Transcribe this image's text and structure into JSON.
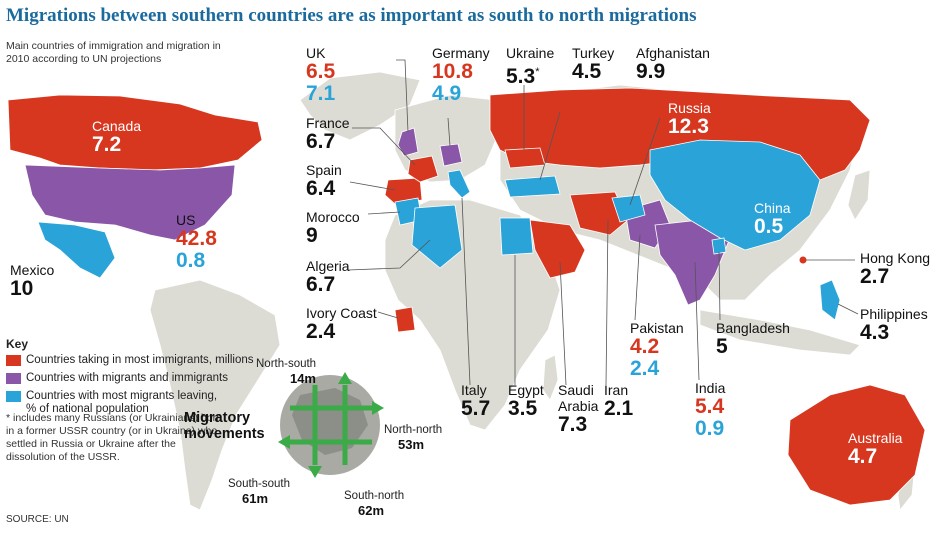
{
  "title": "Migrations between southern countries are as important as south to north migrations",
  "subtitle": "Main countries of immigration and migration in 2010 according to UN projections",
  "colors": {
    "immigration": "#d7371f",
    "both": "#8a57a8",
    "emigration": "#2aa3d9",
    "land": "#dcdcd4",
    "ocean": "#ffffff"
  },
  "countries": {
    "canada": {
      "name": "Canada",
      "immigrants": "7.2"
    },
    "us": {
      "name": "US",
      "immigrants": "42.8",
      "emigrants": "0.8"
    },
    "mexico": {
      "name": "Mexico",
      "emigrants": "10"
    },
    "uk": {
      "name": "UK",
      "immigrants": "6.5",
      "emigrants": "7.1"
    },
    "france": {
      "name": "France",
      "immigrants": "6.7"
    },
    "spain": {
      "name": "Spain",
      "immigrants": "6.4"
    },
    "morocco": {
      "name": "Morocco",
      "emigrants": "9"
    },
    "algeria": {
      "name": "Algeria",
      "emigrants": "6.7"
    },
    "ivory_coast": {
      "name": "Ivory Coast",
      "immigrants": "2.4"
    },
    "germany": {
      "name": "Germany",
      "immigrants": "10.8",
      "emigrants": "4.9"
    },
    "ukraine": {
      "name": "Ukraine",
      "immigrants": "5.3",
      "marker": "*"
    },
    "turkey": {
      "name": "Turkey",
      "emigrants": "4.5"
    },
    "afghanistan": {
      "name": "Afghanistan",
      "emigrants": "9.9"
    },
    "russia": {
      "name": "Russia",
      "immigrants": "12.3"
    },
    "china": {
      "name": "China",
      "emigrants": "0.5"
    },
    "hong_kong": {
      "name": "Hong Kong",
      "immigrants": "2.7"
    },
    "philippines": {
      "name": "Philippines",
      "emigrants": "4.3"
    },
    "pakistan": {
      "name": "Pakistan",
      "immigrants": "4.2",
      "emigrants": "2.4"
    },
    "bangladesh": {
      "name": "Bangladesh",
      "emigrants": "5"
    },
    "india": {
      "name": "India",
      "immigrants": "5.4",
      "emigrants": "0.9"
    },
    "italy": {
      "name": "Italy",
      "immigrants": "5.7"
    },
    "egypt": {
      "name": "Egypt",
      "emigrants": "3.5"
    },
    "saudi_arabia": {
      "name_line1": "Saudi",
      "name_line2": "Arabia",
      "immigrants": "7.3"
    },
    "iran": {
      "name": "Iran",
      "immigrants": "2.1"
    },
    "australia": {
      "name": "Australia",
      "immigrants": "4.7"
    }
  },
  "key": {
    "title": "Key",
    "items": [
      {
        "label": "Countries taking in most immigrants, millions",
        "color": "#d7371f"
      },
      {
        "label": "Countries with migrants and immigrants",
        "color": "#8a57a8"
      },
      {
        "label_line1": "Countries with most migrants leaving,",
        "label_line2": "% of national population",
        "color": "#2aa3d9"
      }
    ]
  },
  "footnote": "* includes many Russians (or Ukrainians) born in a former USSR country (or in Ukraine) who settled in Russia or Ukraine after the dissolution of the USSR.",
  "migratory": {
    "title_line1": "Migratory",
    "title_line2": "movements",
    "north_south": {
      "label": "North-south",
      "value": "14m"
    },
    "north_north": {
      "label": "North-north",
      "value": "53m"
    },
    "south_south": {
      "label": "South-south",
      "value": "61m"
    },
    "south_north": {
      "label": "South-north",
      "value": "62m"
    }
  },
  "source": "SOURCE: UN"
}
